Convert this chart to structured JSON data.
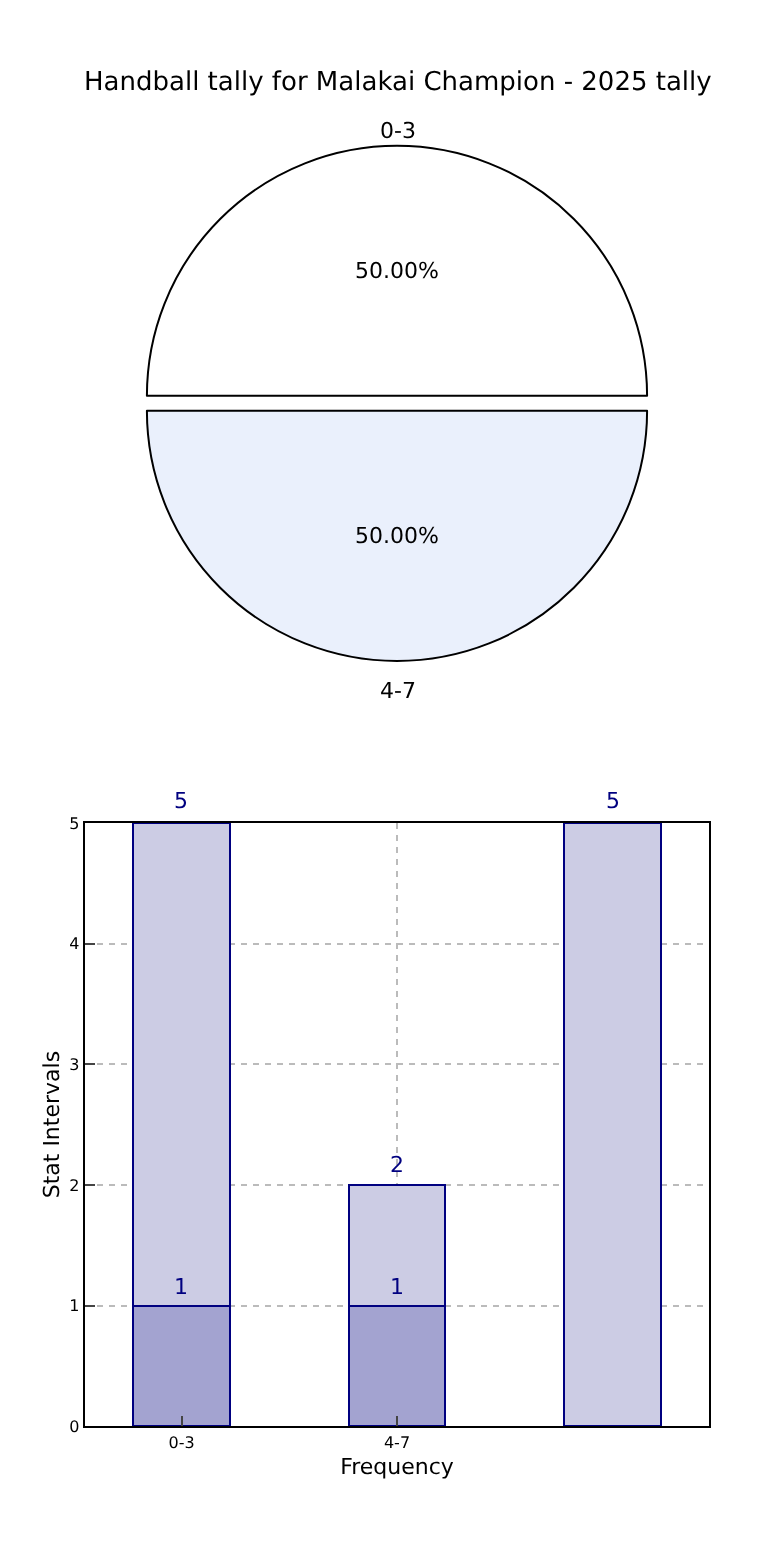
{
  "chart_data": [
    {
      "type": "pie",
      "title": "Handball tally for Malakai Champion - 2025 tally",
      "categories": [
        "0-3",
        "4-7"
      ],
      "values": [
        50,
        50
      ],
      "colors": [
        "#ffffff",
        "#eaf0fc"
      ],
      "value_labels": [
        "50.00%",
        "50.00%"
      ]
    },
    {
      "type": "bar",
      "xlabel": "Frequency",
      "ylabel": "Stat Intervals",
      "categories": [
        "0-3",
        "4-7",
        null
      ],
      "stacked": true,
      "series": [
        {
          "color": "#a3a3d0",
          "values": [
            1,
            1,
            null
          ],
          "value_labels": [
            "1",
            "1",
            null
          ]
        },
        {
          "color": "#cccce4",
          "values": [
            4,
            1,
            5
          ]
        }
      ],
      "totals": [
        "5",
        "2",
        "5"
      ],
      "ylim": [
        0,
        5
      ],
      "yticks": [
        0,
        1,
        2,
        3,
        4,
        5
      ],
      "grid": true
    }
  ]
}
